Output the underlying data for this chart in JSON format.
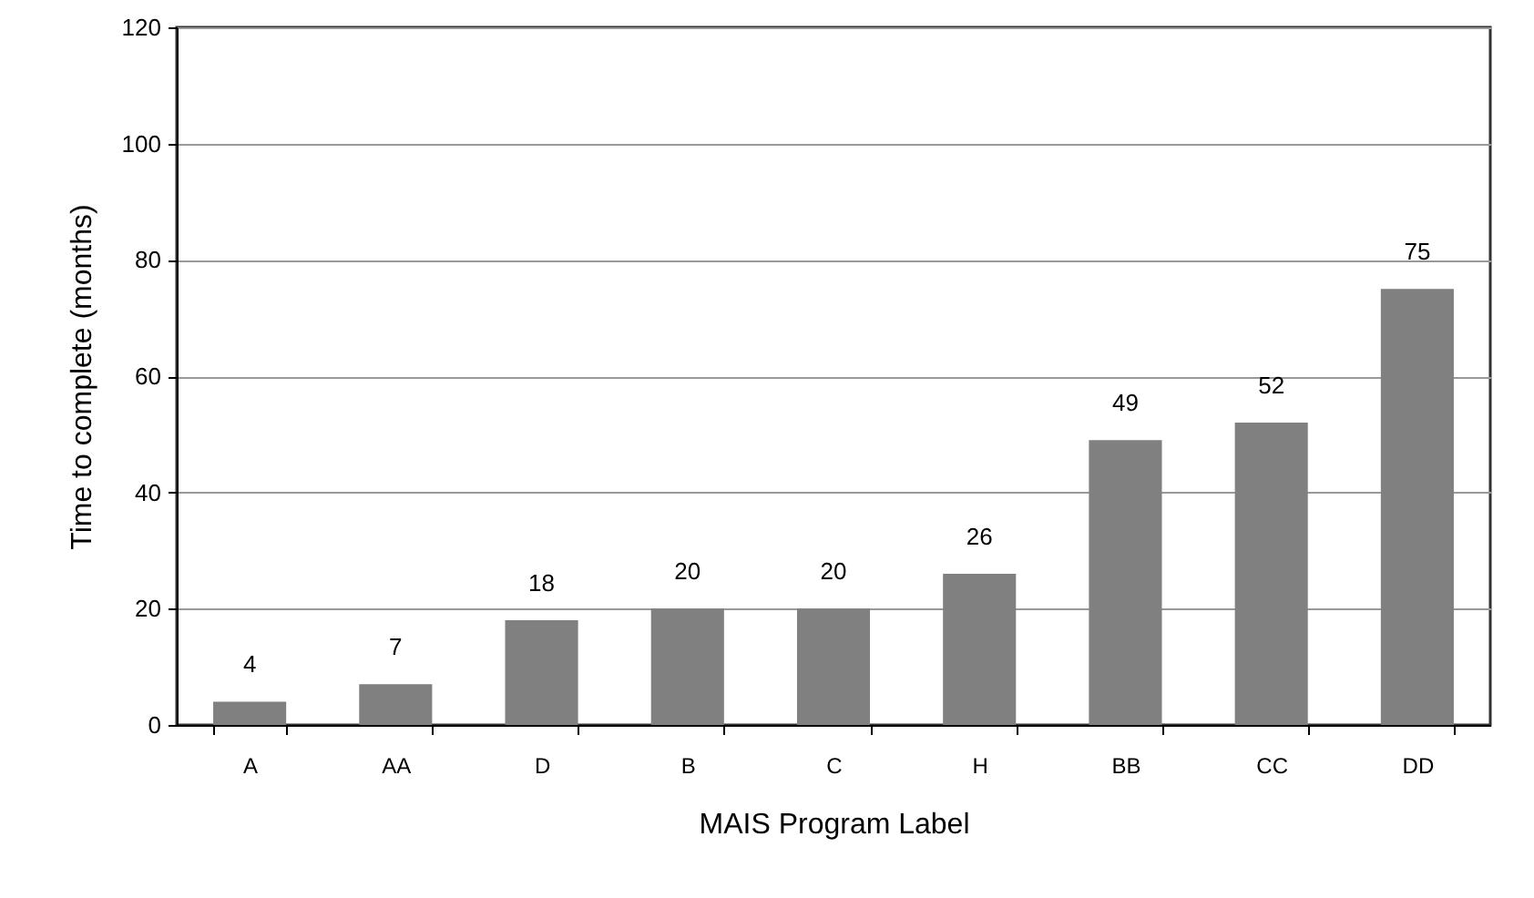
{
  "chart_data": {
    "type": "bar",
    "xlabel": "MAIS Program Label",
    "ylabel": "Time to complete (months)",
    "categories": [
      "A",
      "AA",
      "D",
      "B",
      "C",
      "H",
      "BB",
      "CC",
      "DD"
    ],
    "values": [
      4,
      7,
      18,
      20,
      20,
      26,
      49,
      52,
      75
    ],
    "color": "#808080",
    "ylim": [
      0,
      120
    ],
    "yticks": [
      0,
      20,
      40,
      60,
      80,
      100,
      120
    ],
    "grid": "y",
    "data_labels": true
  }
}
